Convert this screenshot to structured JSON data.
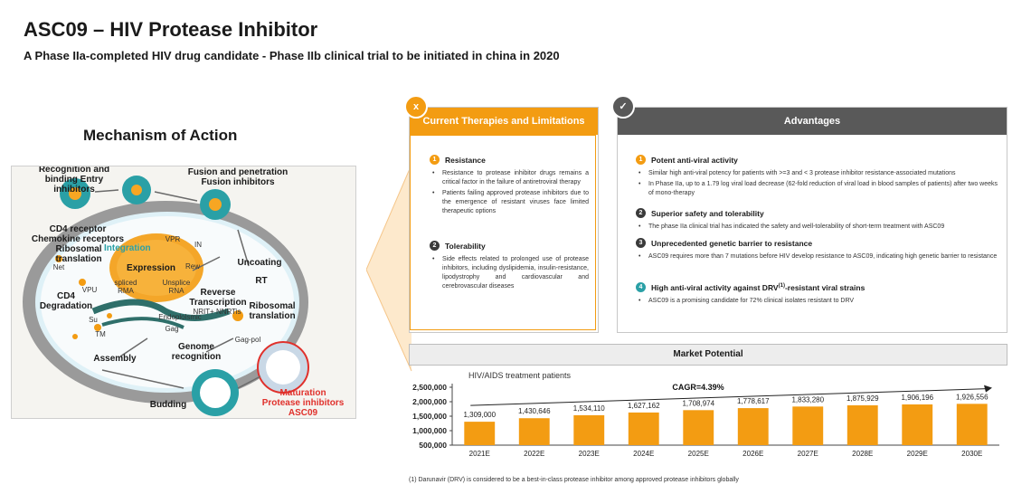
{
  "title": "ASC09 – HIV Protease Inhibitor",
  "subtitle": "A Phase IIa-completed HIV drug candidate - Phase IIb clinical trial to be initiated in china in 2020",
  "moa": {
    "title": "Mechanism of Action",
    "labels": {
      "recognition": "Recognition and\nbinding Entry\ninhibitors",
      "fusion": "Fusion and penetration\nFusion inhibitors",
      "cd4_receptor": "CD4 receptor\nChemokine receptors",
      "ribosomal_left": "Ribosomal\ntranslation",
      "integration": "Integration",
      "vpr": "VPR",
      "in": "IN",
      "net": "Net",
      "expression": "Expression",
      "rew": "Rew",
      "uncoating": "Uncoating",
      "rt": "RT",
      "vpu": "VPU",
      "cd4_degradation": "CD4\nDegradation",
      "spliced_rna": "spliced\nRMA",
      "unsplice_rna": "Unsplice\nRNA",
      "reverse_transcription": "Reverse\nTranscription",
      "nrti": "NRIT+ NNRTis",
      "ribosomal_right": "Ribosomal\ntranslation",
      "endoplasmic": "Endoplolsmic",
      "su": "Su",
      "tm": "TM",
      "gag": "Gag",
      "gag_pol": "Gag-pol",
      "genome": "Genome\nrecognition",
      "assembly": "Assembly",
      "budding": "Budding",
      "maturation": "Maturation\nProtease inhibitors\nASC09"
    }
  },
  "current_therapies": {
    "badge": "x",
    "header": "Current Therapies and Limitations",
    "sections": [
      {
        "num": "1",
        "title": "Resistance",
        "bullets": [
          "Resistance to protease inhibitor drugs remains a critical factor in the failure of antiretroviral therapy",
          "Patients failing approved protease inhibitors due to the emergence of resistant viruses face limited therapeutic options"
        ]
      },
      {
        "num": "2",
        "title": "Tolerability",
        "bullets": [
          "Side effects related to prolonged use of protease inhibitors, including dyslipidemia, insulin-resistance, lipodystrophy and cardiovascular and cerebrovascular diseases"
        ]
      }
    ]
  },
  "advantages": {
    "badge": "✓",
    "header": "Advantages",
    "sections": [
      {
        "num": "1",
        "title": "Potent anti-viral activity",
        "bullets": [
          "Similar high anti-viral potency for patients with >=3  and < 3 protease inhibitor resistance-associated mutations",
          "In Phase IIa, up to a 1.79 log viral load decrease (62-fold reduction of viral load in blood samples of patients) after two weeks of mono-therapy"
        ]
      },
      {
        "num": "2",
        "title": "Superior safety and tolerability",
        "bullets": [
          "The phase IIa clinical trial has indicated the safety and well-tolerability of short-term treatment with ASC09"
        ]
      },
      {
        "num": "3",
        "title": "Unprecedented genetic barrier to resistance",
        "bullets": [
          "ASC09 requires more than 7 mutations before HIV develop resistance to ASC09, indicating high genetic barrier to resistance"
        ]
      },
      {
        "num": "4",
        "title_pre": "High anti-viral activity against DRV",
        "title_sup": "(1)",
        "title_post": "-resistant viral strains",
        "bullets": [
          "ASC09 is a promising candidate for 72% clinical isolates resistant to DRV"
        ]
      }
    ]
  },
  "market": {
    "header": "Market Potential",
    "chart_subtitle": "HIV/AIDS treatment patients",
    "cagr": "CAGR=4.39%"
  },
  "chart_data": {
    "type": "bar",
    "title": "HIV/AIDS treatment patients",
    "categories": [
      "2021E",
      "2022E",
      "2023E",
      "2024E",
      "2025E",
      "2026E",
      "2027E",
      "2028E",
      "2029E",
      "2030E"
    ],
    "values": [
      1309000,
      1430646,
      1534110,
      1627162,
      1708974,
      1778617,
      1833280,
      1875929,
      1906196,
      1926556
    ],
    "value_labels": [
      "1,309,000",
      "1,430,646",
      "1,534,110",
      "1,627,162",
      "1,708,974",
      "1,778,617",
      "1,833,280",
      "1,875,929",
      "1,906,196",
      "1,926,556"
    ],
    "yticks": [
      "500,000",
      "1,000,000",
      "1,500,000",
      "2,000,000",
      "2,500,000"
    ],
    "ytick_values": [
      500000,
      1000000,
      1500000,
      2000000,
      2500000
    ],
    "ylim": [
      500000,
      2500000
    ],
    "annotation": "CAGR=4.39%",
    "bar_color": "#f39c12",
    "grid": false
  },
  "footnote": "(1)  Darunavir (DRV) is considered to be a best-in-class protease inhibitor among approved protease inhibitors globally",
  "colors": {
    "orange": "#f39c12",
    "dark": "#595959",
    "teal": "#2aa0a6",
    "red": "#e0302b"
  }
}
